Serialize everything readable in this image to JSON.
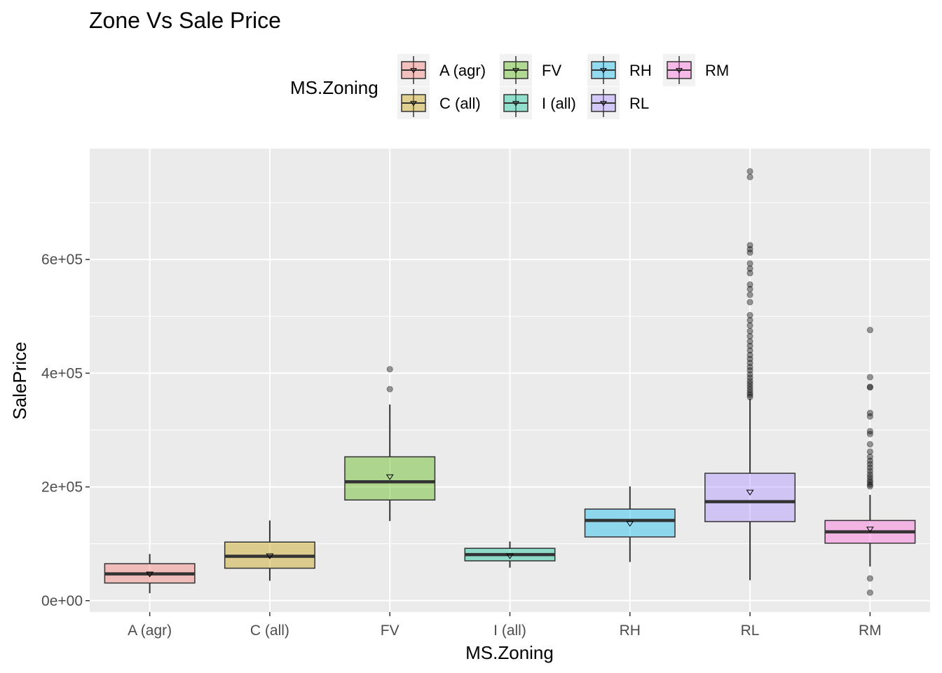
{
  "chart_data": {
    "type": "box",
    "title": "Zone Vs Sale Price",
    "xlabel": "MS.Zoning",
    "ylabel": "SalePrice",
    "ylim": [
      -20000,
      795000
    ],
    "yticks": [
      0,
      200000,
      400000,
      600000
    ],
    "ytick_labels": [
      "0e+00",
      "2e+05",
      "4e+05",
      "6e+05"
    ],
    "grid": true,
    "legend": {
      "title": "MS.Zoning",
      "position": "top",
      "entries": [
        "A (agr)",
        "C (all)",
        "FV",
        "I (all)",
        "RH",
        "RL",
        "RM"
      ]
    },
    "categories": [
      "A (agr)",
      "C (all)",
      "FV",
      "I (all)",
      "RH",
      "RL",
      "RM"
    ],
    "colors": [
      "#F8766D",
      "#C49A00",
      "#53B400",
      "#00C094",
      "#00B6EB",
      "#A58AFF",
      "#FB61D7"
    ],
    "fill_alpha": 0.4,
    "series": [
      {
        "category": "A (agr)",
        "whisker_low": 13000,
        "q1": 31000,
        "median": 47000,
        "q3": 65000,
        "whisker_high": 82000,
        "mean": 47000,
        "outliers": []
      },
      {
        "category": "C (all)",
        "whisker_low": 35000,
        "q1": 57000,
        "median": 78000,
        "q3": 103000,
        "whisker_high": 141000,
        "mean": 79000,
        "outliers": []
      },
      {
        "category": "FV",
        "whisker_low": 140000,
        "q1": 177000,
        "median": 209000,
        "q3": 253000,
        "whisker_high": 345000,
        "mean": 218000,
        "outliers": [
          372000,
          407000
        ]
      },
      {
        "category": "I (all)",
        "whisker_low": 58000,
        "q1": 70000,
        "median": 81000,
        "q3": 92000,
        "whisker_high": 104000,
        "mean": 79000,
        "outliers": []
      },
      {
        "category": "RH",
        "whisker_low": 68000,
        "q1": 112000,
        "median": 141000,
        "q3": 161000,
        "whisker_high": 201000,
        "mean": 136000,
        "outliers": []
      },
      {
        "category": "RL",
        "whisker_low": 36000,
        "q1": 139000,
        "median": 174000,
        "q3": 224000,
        "whisker_high": 355000,
        "mean": 191000,
        "outliers": [
          358000,
          362000,
          366000,
          371000,
          376000,
          381000,
          386000,
          392000,
          398000,
          405000,
          411000,
          418000,
          425000,
          432000,
          440000,
          448000,
          456000,
          465000,
          474000,
          484000,
          493000,
          502000,
          525000,
          538000,
          548000,
          556000,
          576000,
          584000,
          593000,
          612000,
          618000,
          625000,
          745000,
          755000
        ]
      },
      {
        "category": "RM",
        "whisker_low": 60000,
        "q1": 101000,
        "median": 121000,
        "q3": 141000,
        "whisker_high": 186000,
        "mean": 126000,
        "outliers": [
          14000,
          39000,
          201000,
          204000,
          208000,
          212000,
          217000,
          222000,
          228000,
          234000,
          240000,
          246000,
          253000,
          262000,
          275000,
          293000,
          298000,
          324000,
          330000,
          375000,
          376000,
          393000,
          476000
        ]
      }
    ]
  }
}
